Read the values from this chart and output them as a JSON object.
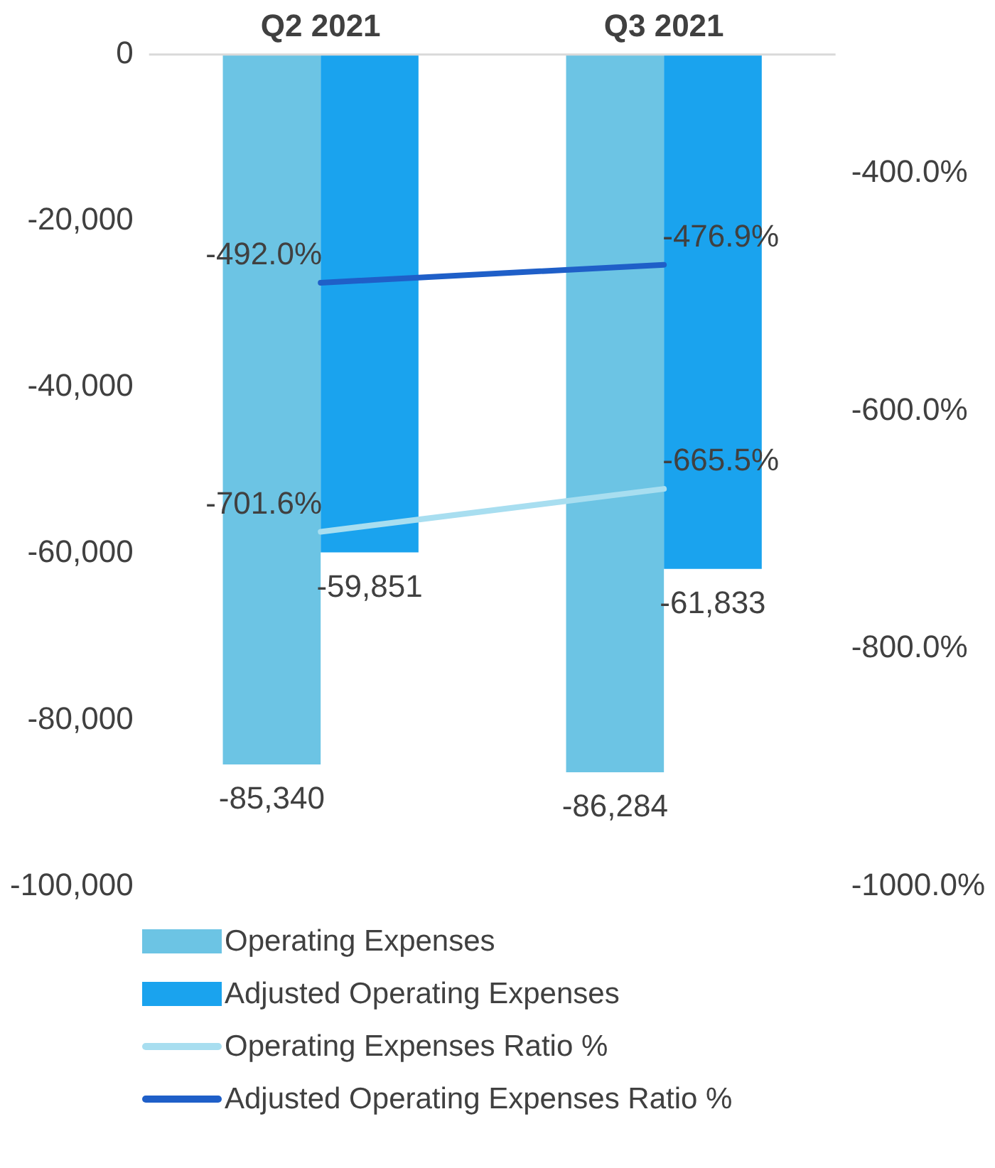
{
  "chart_data": {
    "type": "bar",
    "categories": [
      "Q2 2021",
      "Q3 2021"
    ],
    "series": [
      {
        "name": "Operating Expenses",
        "color": "#6cc4e4",
        "values": [
          -85340,
          -86284
        ],
        "value_labels": [
          "-85,340",
          "-86,284"
        ]
      },
      {
        "name": "Adjusted Operating Expenses",
        "color": "#1aa3ee",
        "values": [
          -59851,
          -61833
        ],
        "value_labels": [
          "-59,851",
          "-61,833"
        ]
      },
      {
        "name": "Operating Expenses Ratio %",
        "type": "line",
        "axis": "y2",
        "color": "#a8def0",
        "values": [
          -701.6,
          -665.5
        ],
        "value_labels": [
          "-701.6%",
          "-665.5%"
        ]
      },
      {
        "name": "Adjusted Operating Expenses Ratio %",
        "type": "line",
        "axis": "y2",
        "color": "#1f5fc8",
        "values": [
          -492.0,
          -476.9
        ],
        "value_labels": [
          "-492.0%",
          "-476.9%"
        ]
      }
    ],
    "ylim": [
      -100000,
      0
    ],
    "yticks": [
      {
        "value": -100000,
        "label": "-100,000"
      },
      {
        "value": -80000,
        "label": "-80,000"
      },
      {
        "value": -60000,
        "label": "-60,000"
      },
      {
        "value": -40000,
        "label": "-40,000"
      },
      {
        "value": -20000,
        "label": "-20,000"
      },
      0
    ],
    "y2lim": [
      -1000,
      -300
    ],
    "y2ticks": [
      {
        "value": -1000,
        "label": "-1000.0%"
      },
      {
        "value": -800,
        "label": "-800.0%"
      },
      {
        "value": -600,
        "label": "-600.0%"
      },
      {
        "value": -400,
        "label": "-400.0%"
      }
    ],
    "grid": false,
    "legend": "bottom",
    "marker": "none",
    "line_style": "solid"
  }
}
